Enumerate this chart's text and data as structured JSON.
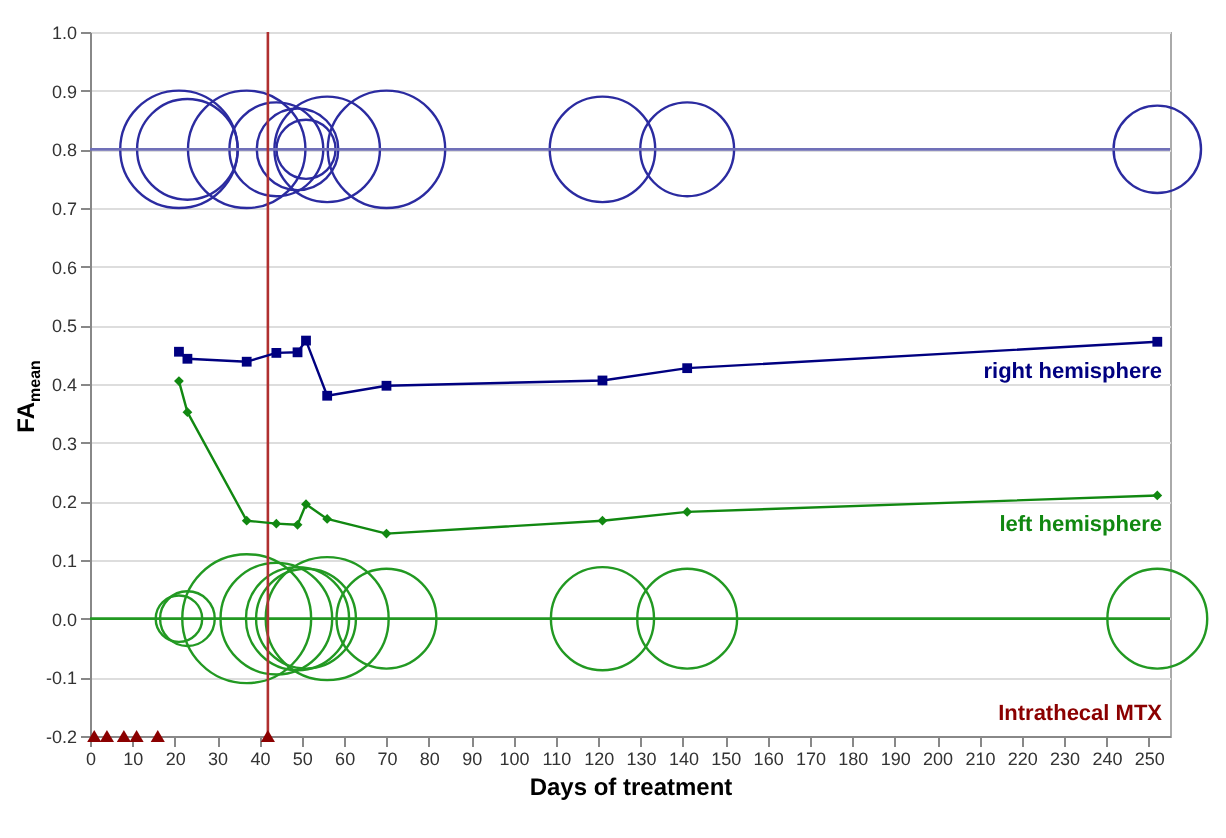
{
  "chart_data": {
    "type": "line",
    "xlabel": "Days of treatment",
    "ylabel": "FA$_{mean}$",
    "xlim": [
      0,
      255
    ],
    "ylim": [
      -0.2,
      1.0
    ],
    "xticks": [
      0,
      10,
      20,
      30,
      40,
      50,
      60,
      70,
      80,
      90,
      100,
      110,
      120,
      130,
      140,
      150,
      160,
      170,
      180,
      190,
      200,
      210,
      220,
      230,
      240,
      250
    ],
    "yticks": [
      -0.2,
      -0.1,
      {
        "value": 0,
        "label": "0.0"
      },
      0.1,
      0.2,
      0.3,
      0.4,
      0.5,
      0.6,
      0.7,
      0.8,
      0.9,
      {
        "value": 1,
        "label": "1.0"
      }
    ],
    "grid": "y",
    "legend": false,
    "series": [
      {
        "type": "bubble",
        "color": "#2b2ba0",
        "x": [
          21,
          23,
          37,
          44,
          49,
          51,
          56,
          70,
          121,
          141,
          252
        ],
        "values": [
          0.8,
          0.8,
          0.8,
          0.8,
          0.8,
          0.8,
          0.8,
          0.8,
          0.8,
          0.8,
          0.8
        ],
        "sizes": [
          0.83,
          0.61,
          0.83,
          0.53,
          0.4,
          0.21,
          0.67,
          0.83,
          0.67,
          0.53,
          0.46
        ]
      },
      {
        "type": "bubble",
        "color": "#229922",
        "x": [
          21,
          23,
          37,
          44,
          49,
          51,
          56,
          70,
          121,
          141,
          252
        ],
        "values": [
          0,
          0,
          0,
          0,
          0,
          0,
          0,
          0,
          0,
          0,
          0
        ],
        "sizes": [
          0.13,
          0.18,
          1,
          0.75,
          0.64,
          0.6,
          0.91,
          0.6,
          0.64,
          0.6,
          0.6
        ]
      },
      {
        "name": "right hemisphere",
        "color": "#000080",
        "marker": "square",
        "x": [
          21,
          23,
          37,
          44,
          49,
          51,
          56,
          70,
          121,
          141,
          252
        ],
        "values": [
          0.455,
          0.443,
          0.438,
          0.453,
          0.454,
          0.474,
          0.38,
          0.397,
          0.406,
          0.427,
          0.472
        ]
      },
      {
        "name": "left hemisphere",
        "color": "#118811",
        "marker": "diamond",
        "x": [
          21,
          23,
          37,
          44,
          49,
          51,
          56,
          70,
          121,
          141,
          252
        ],
        "values": [
          0.405,
          0.352,
          0.167,
          0.162,
          0.16,
          0.195,
          0.17,
          0.145,
          0.167,
          0.182,
          0.21
        ]
      },
      {
        "type": "scatter",
        "name": "Intrathecal MTX",
        "color": "#8b0000",
        "marker": "triangle",
        "x": [
          1,
          4,
          8,
          11,
          16,
          42
        ],
        "values": [
          -0.2,
          -0.2,
          -0.2,
          -0.2,
          -0.2,
          -0.2
        ]
      }
    ],
    "ref_lines": [
      {
        "axis": "y",
        "value": 0.8,
        "color": "#7070b8"
      },
      {
        "axis": "y",
        "value": 0,
        "color": "#229922"
      },
      {
        "axis": "x",
        "value": 42,
        "color": "#b03030"
      }
    ]
  }
}
